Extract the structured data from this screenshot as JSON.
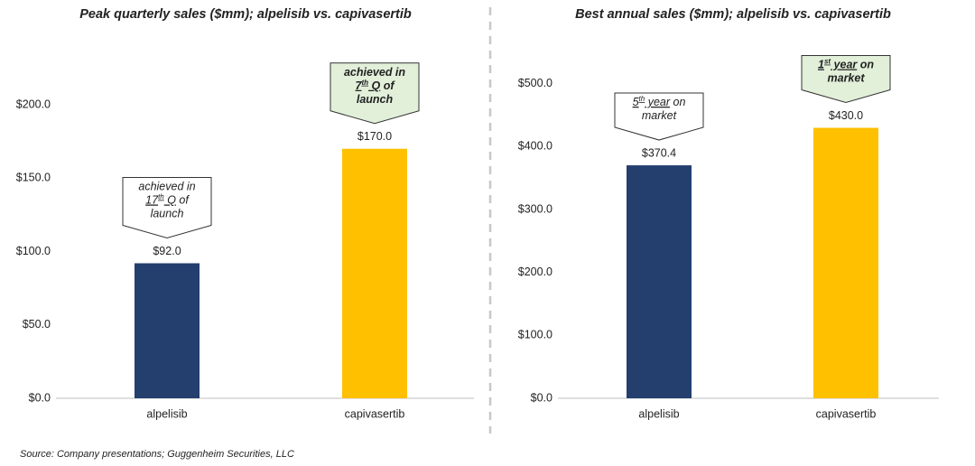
{
  "chart_data": [
    {
      "type": "bar",
      "title": "Peak quarterly sales ($mm); alpelisib vs. capivasertib",
      "categories": [
        "alpelisib",
        "capivasertib"
      ],
      "values": [
        92.0,
        170.0
      ],
      "value_labels": [
        "$92.0",
        "$170.0"
      ],
      "colors": [
        "#243f6e",
        "#ffc000"
      ],
      "ylim": [
        0,
        240
      ],
      "yticks": [
        {
          "value": 0,
          "label": "$0.0"
        },
        {
          "value": 50,
          "label": "$50.0"
        },
        {
          "value": 100,
          "label": "$100.0"
        },
        {
          "value": 150,
          "label": "$150.0"
        },
        {
          "value": 200,
          "label": "$200.0"
        }
      ],
      "annotations": [
        {
          "bold": false,
          "fill": "#ffffff",
          "lines": [
            [
              {
                "text": "achieved in"
              }
            ],
            [
              {
                "text": "17",
                "underline": true
              },
              {
                "text": "th",
                "sup": true,
                "underline": true
              },
              {
                "text": " Q",
                "underline": true
              },
              {
                "text": " of"
              }
            ],
            [
              {
                "text": "launch"
              }
            ]
          ]
        },
        {
          "bold": true,
          "fill": "#e2efd9",
          "lines": [
            [
              {
                "text": "achieved in"
              }
            ],
            [
              {
                "text": "7",
                "underline": true
              },
              {
                "text": "th",
                "sup": true,
                "underline": true
              },
              {
                "text": " Q",
                "underline": true
              },
              {
                "text": " of"
              }
            ],
            [
              {
                "text": "launch"
              }
            ]
          ]
        }
      ]
    },
    {
      "type": "bar",
      "title": "Best annual sales ($mm); alpelisib vs. capivasertib",
      "categories": [
        "alpelisib",
        "capivasertib"
      ],
      "values": [
        370.4,
        430.0
      ],
      "value_labels": [
        "$370.4",
        "$430.0"
      ],
      "colors": [
        "#243f6e",
        "#ffc000"
      ],
      "ylim": [
        0,
        560
      ],
      "yticks": [
        {
          "value": 0,
          "label": "$0.0"
        },
        {
          "value": 100,
          "label": "$100.0"
        },
        {
          "value": 200,
          "label": "$200.0"
        },
        {
          "value": 300,
          "label": "$300.0"
        },
        {
          "value": 400,
          "label": "$400.0"
        },
        {
          "value": 500,
          "label": "$500.0"
        }
      ],
      "annotations": [
        {
          "bold": false,
          "fill": "#ffffff",
          "lines": [
            [
              {
                "text": "5",
                "underline": true
              },
              {
                "text": "th",
                "sup": true,
                "underline": true
              },
              {
                "text": " year",
                "underline": true
              },
              {
                "text": " on"
              }
            ],
            [
              {
                "text": "market"
              }
            ]
          ]
        },
        {
          "bold": true,
          "fill": "#e2efd9",
          "lines": [
            [
              {
                "text": "1",
                "underline": true
              },
              {
                "text": "st",
                "sup": true,
                "underline": true
              },
              {
                "text": " year",
                "underline": true
              },
              {
                "text": " on"
              }
            ],
            [
              {
                "text": "market"
              }
            ]
          ]
        }
      ]
    }
  ],
  "source": "Source: Company presentations; Guggenheim Securities, LLC"
}
